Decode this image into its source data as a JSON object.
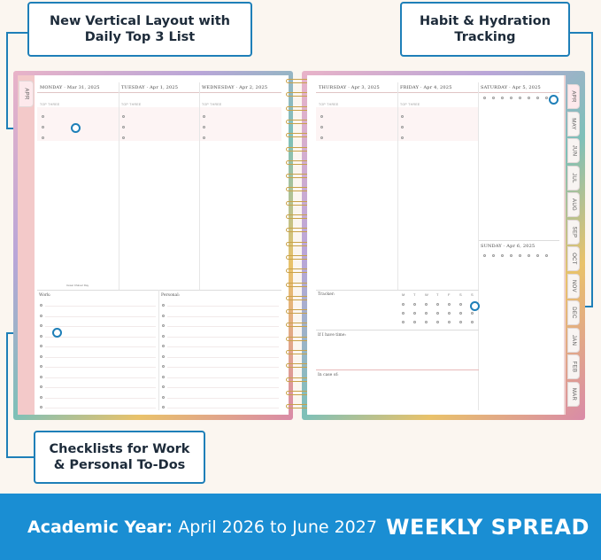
{
  "callouts": {
    "top_left": "New Vertical Layout with\nDaily Top 3 List",
    "top_right": "Habit & Hydration\nTracking",
    "bottom_left": "Checklists for Work\n& Personal To-Dos"
  },
  "planner": {
    "left_days": [
      "MONDAY · Mar 31, 2025",
      "TUESDAY · Apr 1, 2025",
      "WEDNESDAY · Apr 2, 2025"
    ],
    "right_days": [
      "THURSDAY · Apr 3, 2025",
      "FRIDAY · Apr 4, 2025",
      "SATURDAY · Apr 5, 2025"
    ],
    "sunday": "SUNDAY · Apr 6, 2025",
    "top_three_label": "TOP THREE",
    "work_label": "Work:",
    "personal_label": "Personal:",
    "tracker_label": "Tracker:",
    "tracker_days": [
      "M",
      "T",
      "W",
      "T",
      "F",
      "S",
      "S"
    ],
    "grateful_label": "If I have time:",
    "note_label": "In case of:",
    "cesar": "César Chávez Day",
    "left_tab": "APR",
    "month_tabs": [
      "APR",
      "MAY",
      "JUN",
      "JUL",
      "AUG",
      "SEP",
      "OCT",
      "NOV",
      "DEC",
      "JAN",
      "FEB",
      "MAR"
    ]
  },
  "banner": {
    "academic_label": "Academic Year:",
    "academic_range": " April 2026 to June 2027",
    "weekly": "WEEKLY SPREAD"
  },
  "colors": {
    "accent": "#1e7fb8",
    "banner": "#1a8ed3",
    "pink": "#f3c9c9"
  }
}
